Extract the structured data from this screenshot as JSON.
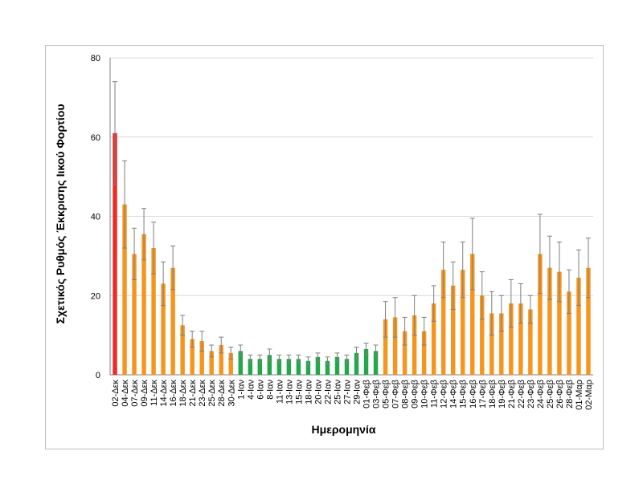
{
  "chart_data": {
    "type": "bar",
    "xlabel": "Ημερομηνία",
    "ylabel": "Σχετικός Ρυθμός Έκκρισης Ιικού Φορτίου",
    "ylim": [
      0,
      80
    ],
    "yticks": [
      0,
      20,
      40,
      60,
      80
    ],
    "grid": "horizontal",
    "colors": {
      "red": "#ee2a24",
      "orange": "#f7941d",
      "green": "#22a84a",
      "error": "#7f7f7f"
    },
    "categories": [
      "02-Δεκ",
      "04-Δεκ",
      "07-Δεκ",
      "09-Δεκ",
      "11-Δεκ",
      "14-Δεκ",
      "16-Δεκ",
      "18-Δεκ",
      "21-Δεκ",
      "23-Δεκ",
      "25-Δεκ",
      "28-Δεκ",
      "30-Δεκ",
      "1-Ιαν",
      "4-Ιαν",
      "6-Ιαν",
      "8-Ιαν",
      "11-Ιαν",
      "13-Ιαν",
      "15-Ιαν",
      "18-Ιαν",
      "20-Ιαν",
      "22-Ιαν",
      "25-Ιαν",
      "27-Ιαν",
      "29-Ιαν",
      "01-Φεβ",
      "03-Φεβ",
      "05-Φεβ",
      "07-Φεβ",
      "08-Φεβ",
      "09-Φεβ",
      "10-Φεβ",
      "11-Φεβ",
      "12-Φεβ",
      "14-Φεβ",
      "15-Φεβ",
      "16-Φεβ",
      "17-Φεβ",
      "18-Φεβ",
      "19-Φεβ",
      "21-Φεβ",
      "22-Φεβ",
      "23-Φεβ",
      "24-Φεβ",
      "25-Φεβ",
      "26-Φεβ",
      "28-Φεβ",
      "01-Μαρ",
      "02-Μαρ"
    ],
    "values": [
      61,
      43,
      30.5,
      35.5,
      32,
      23,
      27,
      12.5,
      9,
      8.5,
      6,
      7.5,
      5.5,
      6,
      4,
      4,
      5,
      4,
      4,
      4,
      3.5,
      4.5,
      3.5,
      4.5,
      4,
      5.5,
      6.5,
      6,
      14,
      14.5,
      11,
      15,
      11,
      18,
      26.5,
      22.5,
      26.5,
      30.5,
      20,
      15.5,
      15.5,
      18,
      18,
      16.5,
      30.5,
      27,
      26,
      21,
      24.5,
      27
    ],
    "error": [
      13,
      11,
      6.5,
      6.5,
      6.5,
      5.5,
      5.5,
      2.5,
      2,
      2.5,
      1.5,
      2,
      1.5,
      1.5,
      1,
      1,
      1.5,
      1,
      1,
      1,
      1,
      1,
      1,
      1,
      1,
      1.5,
      1.5,
      1.5,
      4.5,
      5,
      3.5,
      5,
      3.5,
      4.5,
      7,
      6,
      7,
      9,
      6,
      5.5,
      4.5,
      6,
      5,
      3.5,
      10,
      8,
      7.5,
      5.5,
      7,
      7.5
    ],
    "bar_colors": [
      "red",
      "orange",
      "orange",
      "orange",
      "orange",
      "orange",
      "orange",
      "orange",
      "orange",
      "orange",
      "orange",
      "orange",
      "orange",
      "green",
      "green",
      "green",
      "green",
      "green",
      "green",
      "green",
      "green",
      "green",
      "green",
      "green",
      "green",
      "green",
      "green",
      "green",
      "orange",
      "orange",
      "orange",
      "orange",
      "orange",
      "orange",
      "orange",
      "orange",
      "orange",
      "orange",
      "orange",
      "orange",
      "orange",
      "orange",
      "orange",
      "orange",
      "orange",
      "orange",
      "orange",
      "orange",
      "orange",
      "orange"
    ]
  }
}
